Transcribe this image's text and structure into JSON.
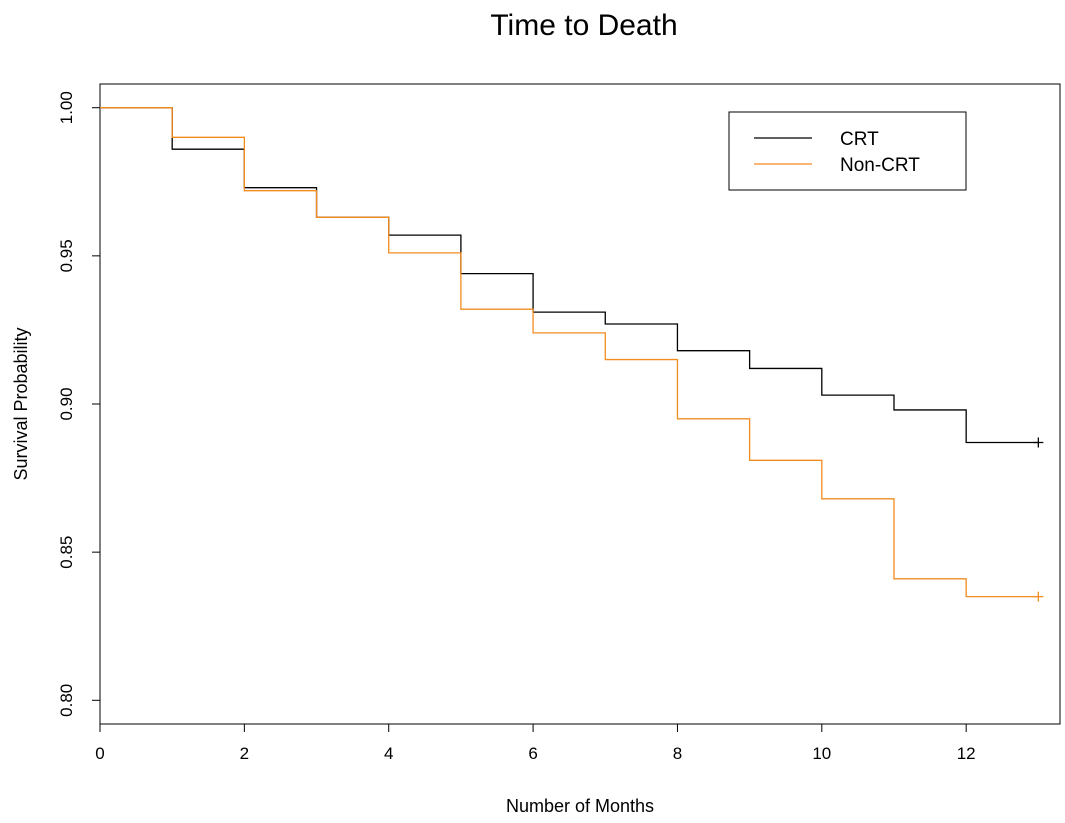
{
  "chart_data": {
    "type": "line",
    "step": true,
    "title": "Time to Death",
    "xlabel": "Number of Months",
    "ylabel": "Survival Probability",
    "xlim": [
      0,
      13.3
    ],
    "ylim": [
      0.792,
      1.008
    ],
    "xticks": [
      0,
      2,
      4,
      6,
      8,
      10,
      12
    ],
    "xtick_labels": [
      "0",
      "2",
      "4",
      "6",
      "8",
      "10",
      "12"
    ],
    "yticks": [
      0.8,
      0.85,
      0.9,
      0.95,
      1.0
    ],
    "ytick_labels": [
      "0.80",
      "0.85",
      "0.90",
      "0.95",
      "1.00"
    ],
    "grid": false,
    "legend": {
      "placement": "top-right"
    },
    "series": [
      {
        "name": "CRT",
        "color": "#000000",
        "x": [
          0,
          1,
          2,
          3,
          4,
          5,
          6,
          7,
          8,
          9,
          10,
          11,
          12,
          13
        ],
        "y": [
          1.0,
          0.986,
          0.973,
          0.963,
          0.957,
          0.944,
          0.931,
          0.927,
          0.918,
          0.912,
          0.903,
          0.898,
          0.887,
          0.887
        ],
        "censor_x": 13,
        "censor_y": 0.887
      },
      {
        "name": "Non-CRT",
        "color": "#f28c1e",
        "x": [
          0,
          1,
          2,
          3,
          4,
          5,
          6,
          7,
          8,
          9,
          10,
          11,
          12,
          13
        ],
        "y": [
          1.0,
          0.99,
          0.972,
          0.963,
          0.951,
          0.932,
          0.924,
          0.915,
          0.895,
          0.881,
          0.868,
          0.841,
          0.835,
          0.835
        ],
        "censor_x": 13,
        "censor_y": 0.835
      }
    ]
  }
}
